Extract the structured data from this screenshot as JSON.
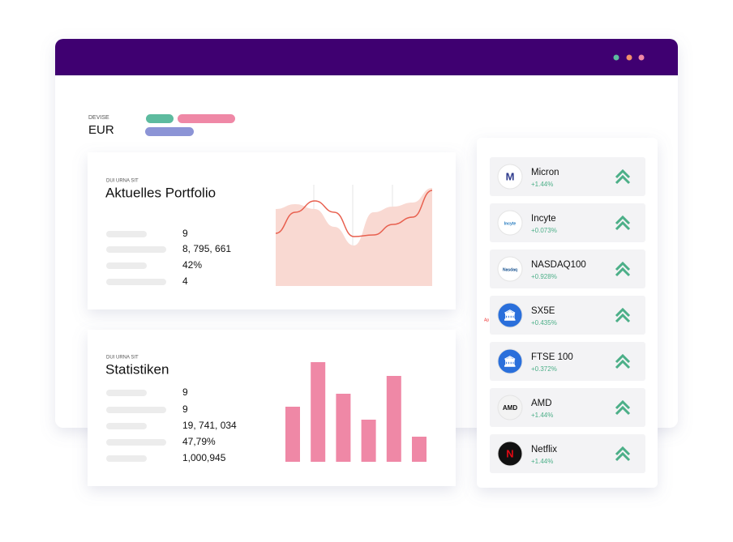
{
  "header": {
    "label": "DEVISE",
    "currency": "EUR"
  },
  "portfolio": {
    "eyebrow": "DUI URNA SIT",
    "title": "Aktuelles Portfolio",
    "rows": [
      "9",
      "8, 795, 661",
      "42%",
      "4"
    ],
    "chart": {
      "type": "area",
      "line": [
        65,
        91,
        105,
        91,
        61,
        63,
        76,
        85,
        118
      ],
      "area": [
        95,
        101,
        95,
        73,
        50,
        91,
        98,
        103,
        121
      ],
      "line_color": "#e8604f",
      "area_color": "#f9d9d2"
    }
  },
  "stats": {
    "eyebrow": "DUI URNA SIT",
    "title": "Statistiken",
    "rows": [
      "9",
      "9",
      "19, 741, 034",
      "47,79%",
      "1,000,945"
    ],
    "chart": {
      "type": "bar",
      "values": [
        68,
        123,
        84,
        52,
        106,
        31
      ],
      "color": "#ef88a6"
    }
  },
  "stray_label": "Ap",
  "stocks": [
    {
      "name": "Micron",
      "change": "+1.44%",
      "logo": "M",
      "logo_color": "#2d3a8c",
      "logo_bg": "#ffffff"
    },
    {
      "name": "Incyte",
      "change": "+0.073%",
      "logo": "Incyte",
      "logo_color": "#1b75bc",
      "logo_bg": "#ffffff"
    },
    {
      "name": "NASDAQ100",
      "change": "+0.928%",
      "logo": "Nasdaq",
      "logo_color": "#0e4a8a",
      "logo_bg": "#ffffff"
    },
    {
      "name": "SX5E",
      "change": "+0.435%",
      "logo": "🏛",
      "logo_color": "#ffffff",
      "logo_bg": "#2a6fdb"
    },
    {
      "name": "FTSE 100",
      "change": "+0.372%",
      "logo": "🏛",
      "logo_color": "#ffffff",
      "logo_bg": "#2a6fdb"
    },
    {
      "name": "AMD",
      "change": "+1.44%",
      "logo": "AMD",
      "logo_color": "#111111",
      "logo_bg": "#f3f3f3"
    },
    {
      "name": "Netflix",
      "change": "+1.44%",
      "logo": "N",
      "logo_color": "#e50914",
      "logo_bg": "#111111"
    }
  ]
}
